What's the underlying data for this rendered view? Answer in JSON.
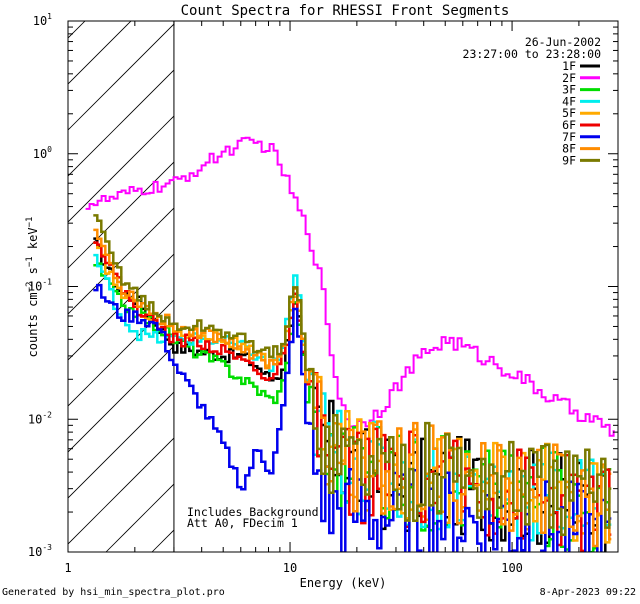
{
  "chart_data": {
    "type": "line",
    "title": "Count Spectra for RHESSI Front Segments",
    "xlabel": "Energy (keV)",
    "ylabel": "counts cm⁻² s⁻¹ keV⁻¹",
    "xscale": "log",
    "yscale": "log",
    "xlim": [
      1,
      300
    ],
    "ylim": [
      0.001,
      10
    ],
    "x_ticks": [
      {
        "value": 1,
        "label": "1"
      },
      {
        "value": 10,
        "label": "10"
      },
      {
        "value": 100,
        "label": "100"
      }
    ],
    "y_ticks": [
      {
        "value": 0.001,
        "base": "10",
        "exp": "-3"
      },
      {
        "value": 0.01,
        "base": "10",
        "exp": "-2"
      },
      {
        "value": 0.1,
        "base": "10",
        "exp": "-1"
      },
      {
        "value": 1,
        "base": "10",
        "exp": "0"
      },
      {
        "value": 10,
        "base": "10",
        "exp": "1"
      }
    ],
    "hatched_region_keV": [
      1.2,
      3.0
    ],
    "date": "26-Jun-2002",
    "time_range": "23:27:00 to 23:28:00",
    "annotations": [
      "Includes Background",
      "Att A0, FDecim 1"
    ],
    "series": [
      {
        "name": "1F",
        "color": "#000000",
        "peak_keV": 10.3,
        "peak": 0.09,
        "low_energy_value": 0.21,
        "points": [
          [
            1.3,
            0.21
          ],
          [
            1.7,
            0.09
          ],
          [
            2.0,
            0.08
          ],
          [
            2.5,
            0.05
          ],
          [
            3,
            0.035
          ],
          [
            4,
            0.032
          ],
          [
            5,
            0.03
          ],
          [
            6,
            0.03
          ],
          [
            7,
            0.025
          ],
          [
            8,
            0.02
          ],
          [
            9,
            0.022
          ],
          [
            10,
            0.06
          ],
          [
            10.5,
            0.09
          ],
          [
            11,
            0.04
          ],
          [
            12,
            0.012
          ],
          [
            15,
            0.006
          ],
          [
            20,
            0.004
          ],
          [
            30,
            0.003
          ],
          [
            50,
            0.0032
          ],
          [
            70,
            0.003
          ],
          [
            100,
            0.0028
          ],
          [
            150,
            0.0025
          ],
          [
            200,
            0.0024
          ],
          [
            280,
            0.002
          ]
        ]
      },
      {
        "name": "2F",
        "color": "#ff00ff",
        "peak_keV": 6.5,
        "peak": 1.2,
        "low_energy_value": 0.42,
        "points": [
          [
            1.2,
            0.42
          ],
          [
            1.5,
            0.45
          ],
          [
            2,
            0.52
          ],
          [
            3,
            0.6
          ],
          [
            4,
            0.82
          ],
          [
            5,
            1.05
          ],
          [
            6,
            1.18
          ],
          [
            7,
            1.2
          ],
          [
            8,
            1.1
          ],
          [
            9,
            0.8
          ],
          [
            10,
            0.5
          ],
          [
            11,
            0.35
          ],
          [
            12,
            0.24
          ],
          [
            13,
            0.15
          ],
          [
            14,
            0.08
          ],
          [
            15,
            0.035
          ],
          [
            16,
            0.017
          ],
          [
            18,
            0.01
          ],
          [
            20,
            0.009
          ],
          [
            25,
            0.012
          ],
          [
            30,
            0.018
          ],
          [
            35,
            0.025
          ],
          [
            40,
            0.032
          ],
          [
            50,
            0.04
          ],
          [
            60,
            0.035
          ],
          [
            70,
            0.03
          ],
          [
            80,
            0.027
          ],
          [
            100,
            0.022
          ],
          [
            120,
            0.018
          ],
          [
            150,
            0.014
          ],
          [
            180,
            0.012
          ],
          [
            200,
            0.011
          ],
          [
            250,
            0.009
          ],
          [
            290,
            0.0075
          ]
        ]
      },
      {
        "name": "3F",
        "color": "#00dd00",
        "peak_keV": 10.3,
        "peak": 0.085,
        "low_energy_value": 0.15,
        "points": [
          [
            1.3,
            0.15
          ],
          [
            1.7,
            0.075
          ],
          [
            2,
            0.065
          ],
          [
            2.5,
            0.05
          ],
          [
            3,
            0.04
          ],
          [
            4,
            0.03
          ],
          [
            5,
            0.025
          ],
          [
            6,
            0.02
          ],
          [
            7,
            0.017
          ],
          [
            8,
            0.014
          ],
          [
            9,
            0.016
          ],
          [
            10,
            0.05
          ],
          [
            10.5,
            0.085
          ],
          [
            11,
            0.04
          ],
          [
            12,
            0.01
          ],
          [
            15,
            0.005
          ],
          [
            20,
            0.004
          ],
          [
            30,
            0.0035
          ],
          [
            50,
            0.0032
          ],
          [
            70,
            0.003
          ],
          [
            100,
            0.0028
          ],
          [
            150,
            0.0025
          ],
          [
            200,
            0.0023
          ],
          [
            280,
            0.002
          ]
        ]
      },
      {
        "name": "4F",
        "color": "#00eeee",
        "peak_keV": 10.3,
        "peak": 0.14,
        "low_energy_value": 0.17,
        "points": [
          [
            1.3,
            0.17
          ],
          [
            1.7,
            0.06
          ],
          [
            2,
            0.045
          ],
          [
            2.5,
            0.04
          ],
          [
            3,
            0.04
          ],
          [
            4,
            0.04
          ],
          [
            5,
            0.038
          ],
          [
            6,
            0.035
          ],
          [
            7,
            0.03
          ],
          [
            8,
            0.024
          ],
          [
            9,
            0.03
          ],
          [
            10,
            0.09
          ],
          [
            10.5,
            0.14
          ],
          [
            11,
            0.05
          ],
          [
            12,
            0.013
          ],
          [
            15,
            0.006
          ],
          [
            20,
            0.0045
          ],
          [
            30,
            0.0035
          ],
          [
            50,
            0.0033
          ],
          [
            70,
            0.003
          ],
          [
            100,
            0.0028
          ],
          [
            150,
            0.0026
          ],
          [
            200,
            0.0023
          ],
          [
            280,
            0.002
          ]
        ]
      },
      {
        "name": "5F",
        "color": "#ffaa00",
        "peak_keV": 10.3,
        "peak": 0.1,
        "low_energy_value": 0.2,
        "points": [
          [
            1.3,
            0.2
          ],
          [
            1.7,
            0.09
          ],
          [
            2,
            0.07
          ],
          [
            2.5,
            0.055
          ],
          [
            3,
            0.045
          ],
          [
            4,
            0.045
          ],
          [
            5,
            0.04
          ],
          [
            6,
            0.035
          ],
          [
            7,
            0.03
          ],
          [
            8,
            0.025
          ],
          [
            9,
            0.03
          ],
          [
            10,
            0.07
          ],
          [
            10.5,
            0.1
          ],
          [
            11,
            0.045
          ],
          [
            12,
            0.014
          ],
          [
            15,
            0.006
          ],
          [
            20,
            0.0045
          ],
          [
            30,
            0.004
          ],
          [
            50,
            0.0038
          ],
          [
            70,
            0.0035
          ],
          [
            100,
            0.003
          ],
          [
            150,
            0.0027
          ],
          [
            200,
            0.0025
          ],
          [
            280,
            0.0022
          ]
        ]
      },
      {
        "name": "6F",
        "color": "#ee0000",
        "peak_keV": 10.3,
        "peak": 0.09,
        "low_energy_value": 0.24,
        "points": [
          [
            1.3,
            0.24
          ],
          [
            1.7,
            0.1
          ],
          [
            2,
            0.07
          ],
          [
            2.5,
            0.05
          ],
          [
            3,
            0.04
          ],
          [
            4,
            0.038
          ],
          [
            5,
            0.032
          ],
          [
            6,
            0.028
          ],
          [
            7,
            0.024
          ],
          [
            8,
            0.02
          ],
          [
            9,
            0.025
          ],
          [
            10,
            0.06
          ],
          [
            10.5,
            0.09
          ],
          [
            11,
            0.04
          ],
          [
            12,
            0.012
          ],
          [
            15,
            0.005
          ],
          [
            20,
            0.004
          ],
          [
            30,
            0.0035
          ],
          [
            50,
            0.0033
          ],
          [
            70,
            0.003
          ],
          [
            100,
            0.0028
          ],
          [
            150,
            0.0025
          ],
          [
            200,
            0.0023
          ],
          [
            280,
            0.002
          ]
        ]
      },
      {
        "name": "7F",
        "color": "#0000ee",
        "peak_keV": 10.3,
        "peak": 0.08,
        "low_energy_value": 0.1,
        "points": [
          [
            1.3,
            0.1
          ],
          [
            1.7,
            0.06
          ],
          [
            2,
            0.06
          ],
          [
            2.5,
            0.05
          ],
          [
            3,
            0.025
          ],
          [
            4,
            0.012
          ],
          [
            5,
            0.006
          ],
          [
            6,
            0.003
          ],
          [
            7,
            0.006
          ],
          [
            8,
            0.004
          ],
          [
            9,
            0.01
          ],
          [
            10,
            0.04
          ],
          [
            10.5,
            0.08
          ],
          [
            11,
            0.03
          ],
          [
            12,
            0.006
          ],
          [
            15,
            0.002
          ],
          [
            20,
            0.002
          ],
          [
            30,
            0.0018
          ],
          [
            50,
            0.0018
          ],
          [
            70,
            0.0017
          ],
          [
            100,
            0.0016
          ],
          [
            150,
            0.0015
          ],
          [
            200,
            0.0014
          ],
          [
            280,
            0.0012
          ]
        ]
      },
      {
        "name": "8F",
        "color": "#ff8c00",
        "peak_keV": 10.3,
        "peak": 0.11,
        "low_energy_value": 0.27,
        "points": [
          [
            1.3,
            0.27
          ],
          [
            1.7,
            0.1
          ],
          [
            2,
            0.08
          ],
          [
            2.5,
            0.06
          ],
          [
            3,
            0.05
          ],
          [
            4,
            0.045
          ],
          [
            5,
            0.04
          ],
          [
            6,
            0.035
          ],
          [
            7,
            0.03
          ],
          [
            8,
            0.026
          ],
          [
            9,
            0.032
          ],
          [
            10,
            0.075
          ],
          [
            10.5,
            0.11
          ],
          [
            11,
            0.05
          ],
          [
            12,
            0.015
          ],
          [
            15,
            0.006
          ],
          [
            20,
            0.0045
          ],
          [
            30,
            0.004
          ],
          [
            50,
            0.0038
          ],
          [
            70,
            0.0035
          ],
          [
            100,
            0.003
          ],
          [
            150,
            0.0028
          ],
          [
            200,
            0.0025
          ],
          [
            280,
            0.0022
          ]
        ]
      },
      {
        "name": "9F",
        "color": "#7a7a00",
        "peak_keV": 10.3,
        "peak": 0.12,
        "low_energy_value": 0.33,
        "points": [
          [
            1.3,
            0.33
          ],
          [
            1.7,
            0.12
          ],
          [
            2,
            0.09
          ],
          [
            2.5,
            0.06
          ],
          [
            3,
            0.05
          ],
          [
            4,
            0.05
          ],
          [
            5,
            0.045
          ],
          [
            6,
            0.04
          ],
          [
            7,
            0.035
          ],
          [
            8,
            0.03
          ],
          [
            9,
            0.035
          ],
          [
            10,
            0.08
          ],
          [
            10.5,
            0.12
          ],
          [
            11,
            0.055
          ],
          [
            12,
            0.016
          ],
          [
            15,
            0.006
          ],
          [
            20,
            0.005
          ],
          [
            30,
            0.004
          ],
          [
            50,
            0.004
          ],
          [
            70,
            0.0036
          ],
          [
            100,
            0.0032
          ],
          [
            150,
            0.003
          ],
          [
            200,
            0.0027
          ],
          [
            280,
            0.0024
          ]
        ]
      }
    ]
  },
  "footer": {
    "generated_by": "Generated by hsi_min_spectra_plot.pro",
    "date_time": "8-Apr-2023 09:22"
  }
}
